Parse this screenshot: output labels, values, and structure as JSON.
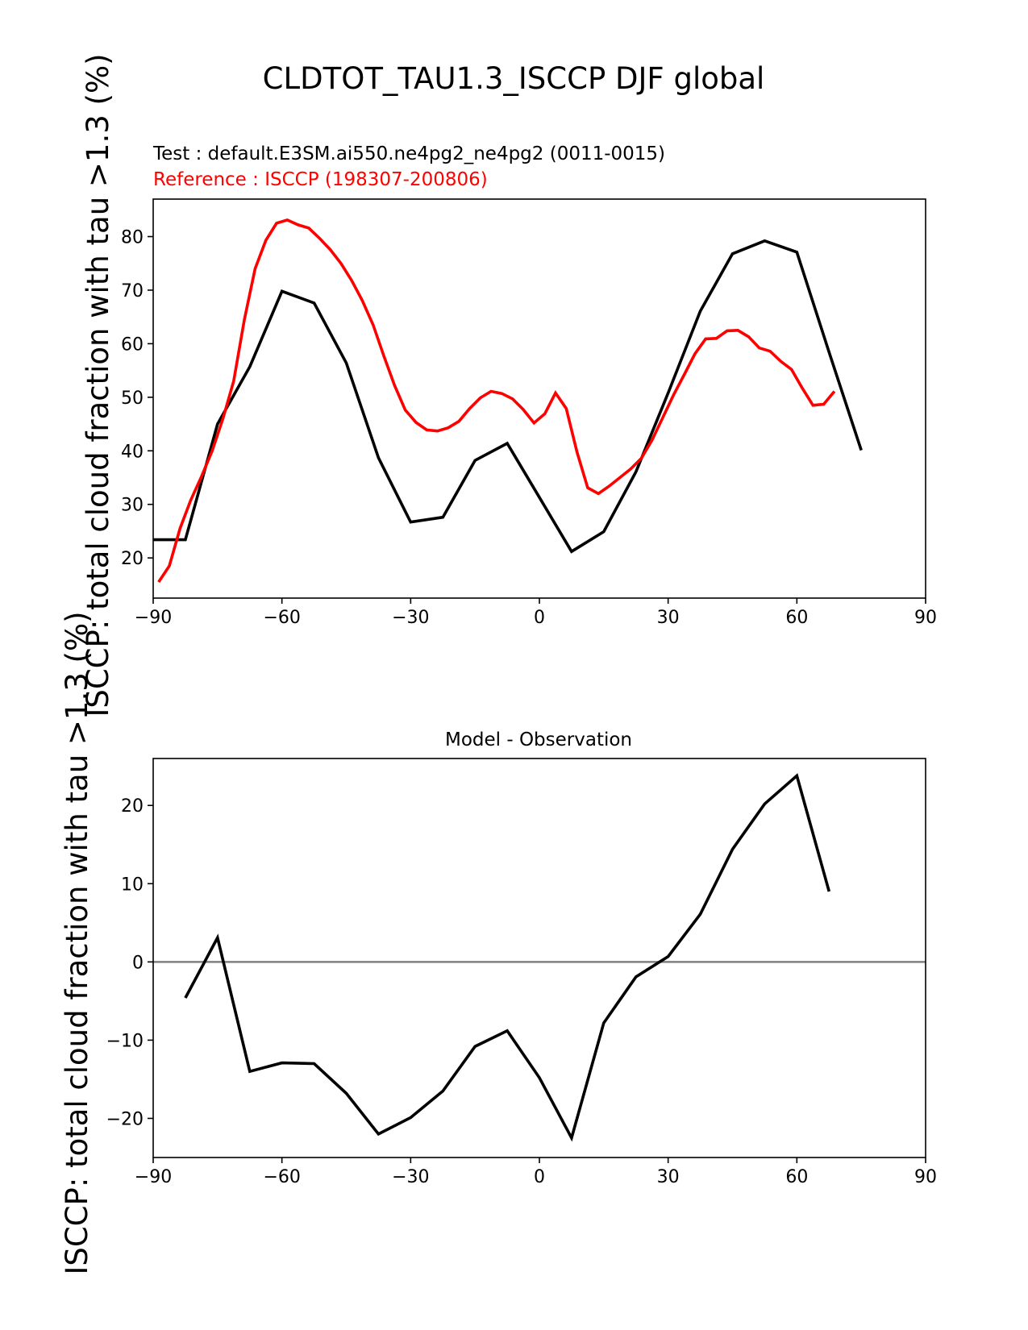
{
  "figure": {
    "suptitle": "CLDTOT_TAU1.3_ISCCP DJF global",
    "test_label": "Test : default.E3SM.ai550.ne4pg2_ne4pg2 (0011-0015)",
    "reference_label": "Reference : ISCCP (198307-200806)",
    "ylabel": "ISCCP: total cloud fraction with tau >1.3 (%)",
    "colors": {
      "test": "#000000",
      "reference": "#ff0000",
      "zero_line": "#808080"
    }
  },
  "chart_data": [
    {
      "type": "line",
      "title": "",
      "xlabel": "",
      "ylabel": "ISCCP: total cloud fraction with tau >1.3 (%)",
      "xlim": [
        -90,
        90
      ],
      "ylim": [
        12.5,
        87
      ],
      "xticks": [
        -90,
        -60,
        -30,
        0,
        30,
        60,
        90
      ],
      "yticks": [
        20,
        30,
        40,
        50,
        60,
        70,
        80
      ],
      "xtick_labels": [
        "−90",
        "−60",
        "−30",
        "0",
        "30",
        "60",
        "90"
      ],
      "ytick_labels": [
        "20",
        "30",
        "40",
        "50",
        "60",
        "70",
        "80"
      ],
      "grid": false,
      "series": [
        {
          "name": "Test",
          "color": "#000000",
          "x": [
            -90,
            -82.5,
            -75,
            -67.5,
            -60,
            -52.5,
            -45,
            -37.5,
            -30,
            -22.5,
            -15,
            -7.5,
            0,
            7.5,
            15,
            22.5,
            30,
            37.5,
            45,
            52.5,
            60,
            67.5,
            75
          ],
          "y": [
            23.4,
            23.4,
            45,
            55.7,
            69.8,
            67.6,
            56.4,
            38.7,
            26.7,
            27.6,
            38.2,
            41.4,
            31.3,
            21.2,
            24.9,
            36.1,
            50.8,
            66.1,
            76.8,
            79.2,
            77.1,
            58.4,
            40.1
          ]
        },
        {
          "name": "Reference",
          "color": "#ff0000",
          "x": [
            -88.75,
            -86.25,
            -83.75,
            -81.25,
            -78.75,
            -76.25,
            -73.75,
            -71.25,
            -68.75,
            -66.25,
            -63.75,
            -61.25,
            -58.75,
            -56.25,
            -53.75,
            -51.25,
            -48.75,
            -46.25,
            -43.75,
            -41.25,
            -38.75,
            -36.25,
            -33.75,
            -31.25,
            -28.75,
            -26.25,
            -23.75,
            -21.25,
            -18.75,
            -16.25,
            -13.75,
            -11.25,
            -8.75,
            -6.25,
            -3.75,
            -1.25,
            1.25,
            3.75,
            6.25,
            8.75,
            11.25,
            13.75,
            16.25,
            18.75,
            21.25,
            23.75,
            26.25,
            28.75,
            31.25,
            33.75,
            36.25,
            38.75,
            41.25,
            43.75,
            46.25,
            48.75,
            51.25,
            53.75,
            56.25,
            58.75,
            61.25,
            63.75,
            66.25,
            68.75
          ],
          "y": [
            15.5,
            18.5,
            25.5,
            30.8,
            35.2,
            40,
            46,
            53,
            64.5,
            74,
            79.3,
            82.5,
            83.1,
            82.2,
            81.6,
            79.7,
            77.6,
            75,
            71.8,
            68,
            63.5,
            57.7,
            52.2,
            47.6,
            45.3,
            43.9,
            43.7,
            44.3,
            45.5,
            47.9,
            49.9,
            51.1,
            50.7,
            49.7,
            47.7,
            45.2,
            46.9,
            50.8,
            47.9,
            39.8,
            33.1,
            32,
            33.4,
            35,
            36.6,
            38.6,
            42,
            46.2,
            50.4,
            54.2,
            58.1,
            60.9,
            61,
            62.4,
            62.5,
            61.3,
            59.2,
            58.6,
            56.7,
            55.2,
            51.7,
            48.5,
            48.7,
            51.1
          ]
        }
      ]
    },
    {
      "type": "line",
      "title": "Model - Observation",
      "xlabel": "",
      "ylabel": "ISCCP: total cloud fraction with tau >1.3 (%)",
      "xlim": [
        -90,
        90
      ],
      "ylim": [
        -25,
        26
      ],
      "xticks": [
        -90,
        -60,
        -30,
        0,
        30,
        60,
        90
      ],
      "yticks": [
        -20,
        -10,
        0,
        10,
        20
      ],
      "xtick_labels": [
        "−90",
        "−60",
        "−30",
        "0",
        "30",
        "60",
        "90"
      ],
      "ytick_labels": [
        "−20",
        "−10",
        "0",
        "10",
        "20"
      ],
      "grid": false,
      "zero_line": true,
      "series": [
        {
          "name": "Model - Observation",
          "color": "#000000",
          "x": [
            -82.5,
            -75,
            -67.5,
            -60,
            -52.5,
            -45,
            -37.5,
            -30,
            -22.5,
            -15,
            -7.5,
            0,
            7.5,
            15,
            22.5,
            30,
            37.5,
            45,
            52.5,
            60,
            67.5
          ],
          "y": [
            -4.6,
            3.1,
            -14,
            -12.9,
            -13,
            -16.8,
            -22,
            -19.9,
            -16.5,
            -10.8,
            -8.8,
            -14.8,
            -22.5,
            -7.8,
            -1.9,
            0.7,
            6.1,
            14.4,
            20.2,
            23.8,
            9
          ]
        }
      ]
    }
  ]
}
